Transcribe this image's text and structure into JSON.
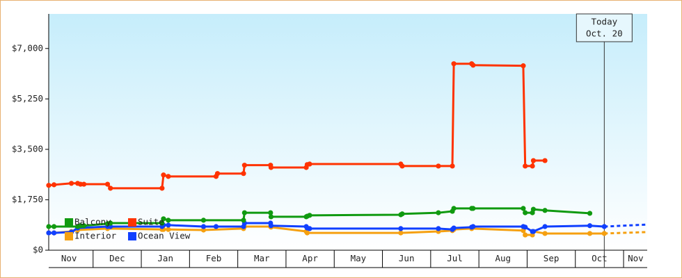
{
  "chart_data": {
    "type": "line",
    "xlim": [
      0.08,
      12.49
    ],
    "xticks": [
      {
        "value": 0.5,
        "label": "Nov"
      },
      {
        "value": 1.5,
        "label": "Dec"
      },
      {
        "value": 2.5,
        "label": "Jan"
      },
      {
        "value": 3.5,
        "label": "Feb"
      },
      {
        "value": 4.5,
        "label": "Mar"
      },
      {
        "value": 5.5,
        "label": "Apr"
      },
      {
        "value": 6.5,
        "label": "May"
      },
      {
        "value": 7.5,
        "label": "Jun"
      },
      {
        "value": 8.5,
        "label": "Jul"
      },
      {
        "value": 9.5,
        "label": "Aug"
      },
      {
        "value": 10.5,
        "label": "Sep"
      },
      {
        "value": 11.5,
        "label": "Oct"
      },
      {
        "value": 12.25,
        "label": "Nov"
      }
    ],
    "ylim": [
      0,
      8200
    ],
    "yticks": [
      {
        "value": 0,
        "label": "$0"
      },
      {
        "value": 1750,
        "label": "$1,750"
      },
      {
        "value": 3500,
        "label": "$3,500"
      },
      {
        "value": 5250,
        "label": "$5,250"
      },
      {
        "value": 7000,
        "label": "$7,000"
      }
    ],
    "legend": "bottom-left",
    "annotation": {
      "x": 11.6,
      "lines": [
        "Today",
        "Oct. 20"
      ]
    },
    "series": [
      {
        "name": "Balcony",
        "color": "#109a10",
        "x": [
          0.08,
          0.19,
          0.68,
          0.74,
          0.81,
          1.3,
          1.36,
          2.43,
          2.46,
          2.56,
          3.29,
          4.12,
          4.14,
          4.68,
          4.69,
          5.42,
          5.44,
          5.49,
          7.38,
          7.41,
          8.16,
          8.45,
          8.48,
          8.85,
          8.88,
          9.92,
          9.96,
          10.11,
          10.13,
          10.37,
          11.3
        ],
        "values": [
          820,
          820,
          820,
          850,
          850,
          920,
          940,
          940,
          1090,
          1040,
          1040,
          1040,
          1300,
          1300,
          1160,
          1160,
          1180,
          1210,
          1230,
          1260,
          1300,
          1350,
          1450,
          1450,
          1450,
          1450,
          1300,
          1300,
          1420,
          1380,
          1280
        ]
      },
      {
        "name": "Suite",
        "color": "#ff3300",
        "x": [
          0.08,
          0.19,
          0.55,
          0.68,
          0.74,
          0.81,
          1.3,
          1.36,
          2.43,
          2.46,
          2.56,
          3.55,
          3.58,
          4.12,
          4.14,
          4.68,
          4.69,
          5.42,
          5.44,
          5.49,
          7.38,
          7.41,
          8.16,
          8.45,
          8.48,
          8.85,
          8.88,
          9.92,
          9.96,
          10.11,
          10.13,
          10.37
        ],
        "values": [
          2250,
          2270,
          2320,
          2320,
          2290,
          2290,
          2290,
          2150,
          2150,
          2610,
          2560,
          2560,
          2660,
          2660,
          2950,
          2950,
          2870,
          2870,
          2970,
          2990,
          2990,
          2920,
          2920,
          2920,
          6470,
          6470,
          6420,
          6400,
          2920,
          2920,
          3110,
          3110
        ]
      },
      {
        "name": "Interior",
        "color": "#f5a010",
        "x": [
          0.08,
          0.19,
          0.55,
          0.68,
          1.3,
          2.43,
          2.46,
          2.56,
          3.29,
          4.12,
          4.14,
          4.68,
          4.69,
          5.42,
          5.44,
          7.38,
          8.16,
          8.45,
          8.48,
          8.85,
          9.92,
          9.96,
          10.11,
          10.13,
          10.37,
          11.3,
          11.6
        ],
        "values": [
          600,
          600,
          650,
          700,
          750,
          720,
          720,
          720,
          700,
          750,
          820,
          820,
          800,
          650,
          600,
          600,
          650,
          680,
          720,
          750,
          680,
          530,
          530,
          650,
          580,
          580,
          580
        ],
        "forecast_x": [
          11.6,
          12.49
        ],
        "forecast_values": [
          580,
          630
        ]
      },
      {
        "name": "Ocean View",
        "color": "#1040ff",
        "x": [
          0.08,
          0.19,
          0.55,
          0.68,
          1.3,
          1.36,
          2.43,
          2.46,
          2.56,
          3.29,
          3.55,
          4.12,
          4.14,
          4.68,
          4.69,
          5.42,
          5.44,
          5.49,
          7.38,
          8.16,
          8.45,
          8.48,
          8.85,
          8.88,
          9.92,
          9.96,
          10.11,
          10.13,
          10.37,
          11.3,
          11.6
        ],
        "values": [
          600,
          600,
          630,
          770,
          820,
          820,
          820,
          870,
          870,
          820,
          820,
          820,
          940,
          940,
          850,
          820,
          770,
          750,
          750,
          750,
          720,
          770,
          800,
          820,
          820,
          800,
          650,
          650,
          820,
          850,
          820
        ],
        "forecast_x": [
          11.6,
          12.49
        ],
        "forecast_values": [
          820,
          890
        ]
      }
    ]
  }
}
